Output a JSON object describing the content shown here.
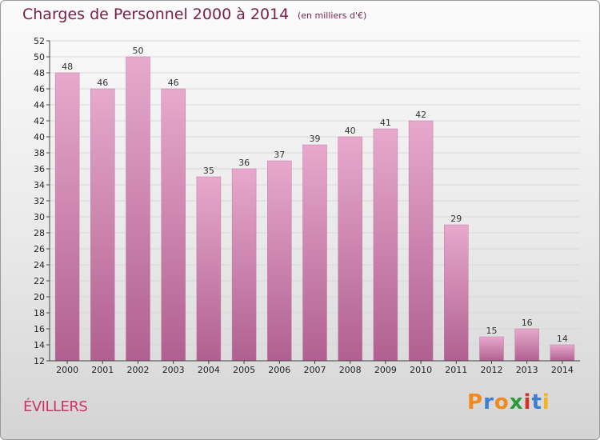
{
  "chart_data": {
    "type": "bar",
    "title": "Charges de Personnel 2000 à 2014",
    "subtitle": "(en milliers d'€)",
    "categories": [
      "2000",
      "2001",
      "2002",
      "2003",
      "2004",
      "2005",
      "2006",
      "2007",
      "2008",
      "2009",
      "2010",
      "2011",
      "2012",
      "2013",
      "2014"
    ],
    "values": [
      48,
      46,
      50,
      46,
      35,
      36,
      37,
      39,
      40,
      41,
      42,
      29,
      15,
      16,
      14
    ],
    "ylim": [
      12,
      52
    ],
    "yticks": [
      12,
      14,
      16,
      18,
      20,
      22,
      24,
      26,
      28,
      30,
      32,
      34,
      36,
      38,
      40,
      42,
      44,
      46,
      48,
      50,
      52
    ],
    "grid": true,
    "bar_color": "#d98fb8"
  },
  "location": "ÉVILLERS",
  "logo": {
    "letters": [
      "P",
      "r",
      "o",
      "x",
      "i",
      "t",
      "i"
    ],
    "colors": [
      "#f08a1c",
      "#3a7fd0",
      "#f08a1c",
      "#2a9a3a",
      "#d4302a",
      "#3a7fd0",
      "#f0b31c"
    ]
  }
}
